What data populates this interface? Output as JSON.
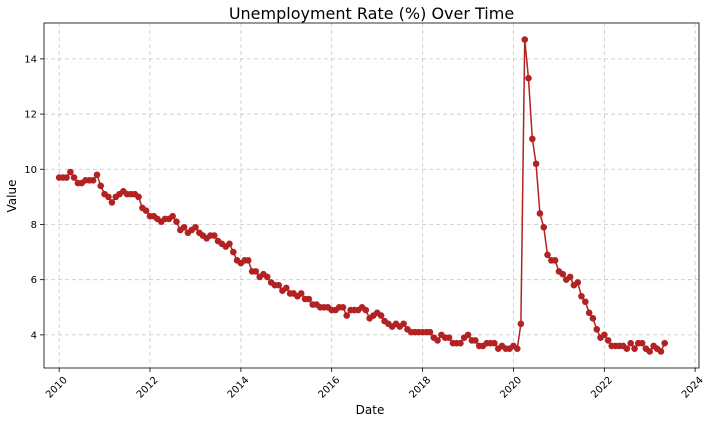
{
  "chart_data": {
    "type": "line",
    "title": "Unemployment Rate (%) Over Time",
    "xlabel": "Date",
    "ylabel": "Value",
    "x_axis": "date",
    "xlim": [
      "2009-09-01",
      "2024-02-01"
    ],
    "ylim": [
      2.8,
      15.3
    ],
    "xticks": [
      "2010",
      "2012",
      "2014",
      "2016",
      "2018",
      "2020",
      "2022",
      "2024"
    ],
    "yticks": [
      4,
      6,
      8,
      10,
      12,
      14
    ],
    "grid": true,
    "legend": "none",
    "colors": {
      "series": "#b22222",
      "grid": "#b0b0b0",
      "frame": "#000000"
    },
    "series": [
      {
        "start": "2010-01",
        "frequency": "monthly",
        "values": [
          9.7,
          9.7,
          9.7,
          9.9,
          9.7,
          9.5,
          9.5,
          9.6,
          9.6,
          9.6,
          9.8,
          9.4,
          9.1,
          9.0,
          8.8,
          9.0,
          9.1,
          9.2,
          9.1,
          9.1,
          9.1,
          9.0,
          8.6,
          8.5,
          8.3,
          8.3,
          8.2,
          8.1,
          8.2,
          8.2,
          8.3,
          8.1,
          7.8,
          7.9,
          7.7,
          7.8,
          7.9,
          7.7,
          7.6,
          7.5,
          7.6,
          7.6,
          7.4,
          7.3,
          7.2,
          7.3,
          7.0,
          6.7,
          6.6,
          6.7,
          6.7,
          6.3,
          6.3,
          6.1,
          6.2,
          6.1,
          5.9,
          5.8,
          5.8,
          5.6,
          5.7,
          5.5,
          5.5,
          5.4,
          5.5,
          5.3,
          5.3,
          5.1,
          5.1,
          5.0,
          5.0,
          5.0,
          4.9,
          4.9,
          5.0,
          5.0,
          4.7,
          4.9,
          4.9,
          4.9,
          5.0,
          4.9,
          4.6,
          4.7,
          4.8,
          4.7,
          4.5,
          4.4,
          4.3,
          4.4,
          4.3,
          4.4,
          4.2,
          4.1,
          4.1,
          4.1,
          4.1,
          4.1,
          4.1,
          3.9,
          3.8,
          4.0,
          3.9,
          3.9,
          3.7,
          3.7,
          3.7,
          3.9,
          4.0,
          3.8,
          3.8,
          3.6,
          3.6,
          3.7,
          3.7,
          3.7,
          3.5,
          3.6,
          3.5,
          3.5,
          3.6,
          3.5,
          4.4,
          14.7,
          13.3,
          11.1,
          10.2,
          8.4,
          7.9,
          6.9,
          6.7,
          6.7,
          6.3,
          6.2,
          6.0,
          6.1,
          5.8,
          5.9,
          5.4,
          5.2,
          4.8,
          4.6,
          4.2,
          3.9,
          4.0,
          3.8,
          3.6,
          3.6,
          3.6,
          3.6,
          3.5,
          3.7,
          3.5,
          3.7,
          3.7,
          3.5,
          3.4,
          3.6,
          3.5,
          3.4,
          3.7
        ]
      }
    ]
  }
}
